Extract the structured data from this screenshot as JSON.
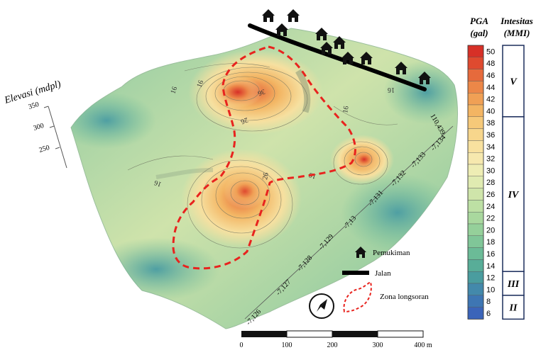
{
  "map": {
    "elevation_axis": {
      "label": "Elevasi (mdpl)",
      "ticks": [
        "350",
        "300",
        "250"
      ]
    },
    "latitude_ticks": [
      "-7,126",
      "-7,127",
      "-7,128",
      "-7,129",
      "-7,13",
      "-7,131",
      "-7,132",
      "-7,133",
      "-7,134"
    ],
    "longitude_ticks": [
      "110,439"
    ],
    "contour_labels": [
      "16",
      "16",
      "36",
      "26",
      "26",
      "16",
      "16",
      "16",
      "16"
    ]
  },
  "colorbar": {
    "header_pga_line1": "PGA",
    "header_pga_line2": "(gal)",
    "header_mmi_line1": "Intesitas",
    "header_mmi_line2": "(MMI)",
    "values": [
      "50",
      "48",
      "46",
      "44",
      "42",
      "40",
      "38",
      "36",
      "34",
      "32",
      "30",
      "28",
      "26",
      "24",
      "22",
      "20",
      "18",
      "16",
      "14",
      "12",
      "10",
      "8",
      "6"
    ],
    "colors": [
      "#d73027",
      "#df4a2f",
      "#e66a3c",
      "#ec8748",
      "#f0a055",
      "#f3b563",
      "#f6c979",
      "#f7d68c",
      "#f8e19f",
      "#f6e8ae",
      "#eeedb4",
      "#e0ebb1",
      "#cfe5aa",
      "#bde0a4",
      "#a9d89e",
      "#95d09a",
      "#80c698",
      "#6bbb97",
      "#58ad98",
      "#4a9d9f",
      "#4389ab",
      "#3e76b3",
      "#3b64b9"
    ],
    "mmi": [
      {
        "label": "V",
        "from": 50,
        "to": 40
      },
      {
        "label": "IV",
        "from": 38,
        "to": 14
      },
      {
        "label": "III",
        "from": 12,
        "to": 10
      },
      {
        "label": "II",
        "from": 8,
        "to": 6
      }
    ]
  },
  "legend": {
    "settlement": "Pemukiman",
    "road": "Jalan",
    "landslide": "Zona longsoran"
  },
  "scalebar": {
    "ticks": [
      "0",
      "100",
      "200",
      "300",
      "400 m"
    ]
  },
  "colors": {
    "landslide": "#e8231e",
    "road": "#000000",
    "terrain_low": "#5bb0a0",
    "terrain_mid": "#c9dda2",
    "terrain_high": "#f2b872"
  }
}
